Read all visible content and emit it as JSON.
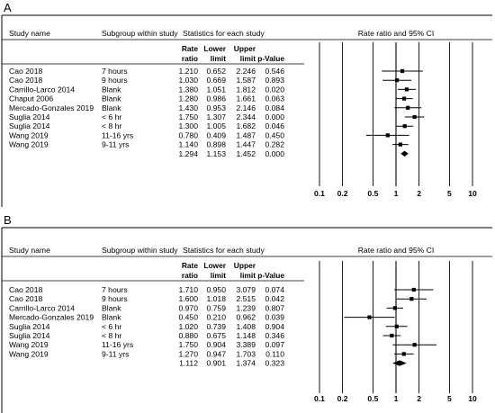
{
  "columns": {
    "study": "Study name",
    "subgroup": "Subgroup within study",
    "stats_title": "Statistics for each study",
    "rate_ratio": [
      "Rate",
      "ratio"
    ],
    "lower_limit": [
      "Lower",
      "limit"
    ],
    "upper_limit": [
      "Upper",
      "limit"
    ],
    "p_value": "p-Value",
    "plot_title": "Rate ratio and 95% CI"
  },
  "chart_data": [
    {
      "type": "forest",
      "panel_label": "A",
      "x_scale": "log",
      "xlim": [
        0.1,
        10
      ],
      "x_ticks": [
        "0.1",
        "0.2",
        "0.5",
        "1",
        "2",
        "5",
        "10"
      ],
      "rows": [
        {
          "study": "Cao 2018",
          "subgroup": "7 hours",
          "rr": "1.210",
          "lower": "0.652",
          "upper": "2.246",
          "p": "0.546"
        },
        {
          "study": "Cao 2018",
          "subgroup": "9 hours",
          "rr": "1.030",
          "lower": "0.669",
          "upper": "1.587",
          "p": "0.893"
        },
        {
          "study": "Carrillo-Larco 2014",
          "subgroup": "Blank",
          "rr": "1.380",
          "lower": "1.051",
          "upper": "1.812",
          "p": "0.020"
        },
        {
          "study": "Chaput 2006",
          "subgroup": "Blank",
          "rr": "1.280",
          "lower": "0.986",
          "upper": "1.661",
          "p": "0.063"
        },
        {
          "study": "Mercado-Gonzales 2019",
          "subgroup": "Blank",
          "rr": "1.430",
          "lower": "0.953",
          "upper": "2.146",
          "p": "0.084"
        },
        {
          "study": "Suglia 2014",
          "subgroup": "< 6 hr",
          "rr": "1.750",
          "lower": "1.307",
          "upper": "2.344",
          "p": "0.000"
        },
        {
          "study": "Suglia 2014",
          "subgroup": "< 8 hr",
          "rr": "1.300",
          "lower": "1.005",
          "upper": "1.682",
          "p": "0.046"
        },
        {
          "study": "Wang 2019",
          "subgroup": "11-16 yrs",
          "rr": "0.780",
          "lower": "0.409",
          "upper": "1.487",
          "p": "0.450"
        },
        {
          "study": "Wang 2019",
          "subgroup": "9-11 yrs",
          "rr": "1.140",
          "lower": "0.898",
          "upper": "1.447",
          "p": "0.282"
        }
      ],
      "summary": {
        "rr": "1.294",
        "lower": "1.153",
        "upper": "1.452",
        "p": "0.000"
      }
    },
    {
      "type": "forest",
      "panel_label": "B",
      "x_scale": "log",
      "xlim": [
        0.1,
        10
      ],
      "x_ticks": [
        "0.1",
        "0.2",
        "0.5",
        "1",
        "2",
        "5",
        "10"
      ],
      "rows": [
        {
          "study": "Cao 2018",
          "subgroup": "7 hours",
          "rr": "1.710",
          "lower": "0.950",
          "upper": "3.079",
          "p": "0.074"
        },
        {
          "study": "Cao 2018",
          "subgroup": "9 hours",
          "rr": "1.600",
          "lower": "1.018",
          "upper": "2.515",
          "p": "0.042"
        },
        {
          "study": "Carrillo-Larco 2014",
          "subgroup": "Blank",
          "rr": "0.970",
          "lower": "0.759",
          "upper": "1.239",
          "p": "0.807"
        },
        {
          "study": "Mercado-Gonzales 2019",
          "subgroup": "Blank",
          "rr": "0.450",
          "lower": "0.210",
          "upper": "0.962",
          "p": "0.039"
        },
        {
          "study": "Suglia 2014",
          "subgroup": "< 6 hr",
          "rr": "1.020",
          "lower": "0.739",
          "upper": "1.408",
          "p": "0.904"
        },
        {
          "study": "Suglia 2014",
          "subgroup": "< 8 hr",
          "rr": "0.880",
          "lower": "0.675",
          "upper": "1.148",
          "p": "0.346"
        },
        {
          "study": "Wang 2019",
          "subgroup": "11-16 yrs",
          "rr": "1.750",
          "lower": "0.904",
          "upper": "3.389",
          "p": "0.097"
        },
        {
          "study": "Wang 2019",
          "subgroup": "9-11 yrs",
          "rr": "1.270",
          "lower": "0.947",
          "upper": "1.703",
          "p": "0.110"
        }
      ],
      "summary": {
        "rr": "1.112",
        "lower": "0.901",
        "upper": "1.374",
        "p": "0.323"
      }
    }
  ]
}
